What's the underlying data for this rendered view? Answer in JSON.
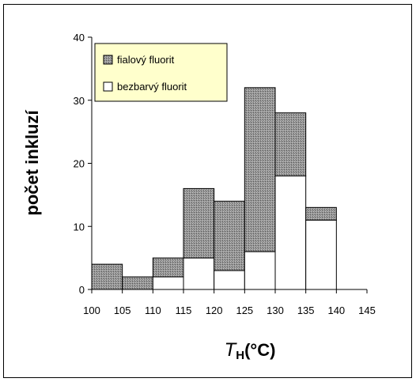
{
  "chart_data": {
    "type": "bar",
    "stacked": true,
    "categories": [
      "105",
      "110",
      "115",
      "120",
      "125",
      "130",
      "135",
      "140"
    ],
    "series": [
      {
        "name": "bezbarvý fluorit",
        "values": [
          0,
          0,
          2,
          5,
          3,
          6,
          18,
          11
        ],
        "color": "#ffffff"
      },
      {
        "name": "fialový fluorit",
        "values": [
          4,
          2,
          3,
          11,
          11,
          26,
          10,
          2
        ],
        "color": "#9a9a9a"
      }
    ],
    "legend": [
      {
        "label": "fialový fluorit",
        "color": "#9a9a9a"
      },
      {
        "label": "bezbarvý fluorit",
        "color": "#ffffff"
      }
    ],
    "x_ticks": [
      "100",
      "105",
      "110",
      "115",
      "120",
      "125",
      "130",
      "135",
      "140",
      "145"
    ],
    "y_ticks": [
      "0",
      "10",
      "20",
      "30",
      "40"
    ],
    "ylim": [
      0,
      40
    ],
    "xlim": [
      100,
      145
    ],
    "xlabel_main": "T",
    "xlabel_sub": "H",
    "xlabel_unit": "(°C)",
    "ylabel": "počet inkluzí",
    "legend_position": "top-left",
    "grid": false
  }
}
